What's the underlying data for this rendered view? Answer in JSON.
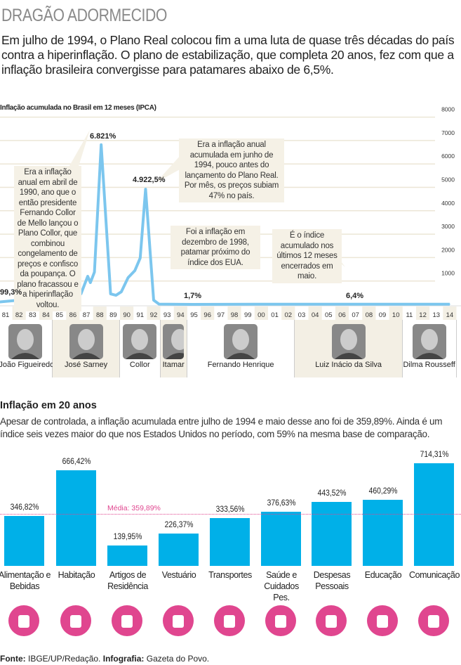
{
  "title": "DRAGÃO ADORMECIDO",
  "intro": "Em julho de 1994, o Plano Real colocou fim a uma luta de quase três décadas do país contra a hiperinflação. O plano de estabilização, que completa 20 anos, fez com que a inflação brasileira convergisse para patamares abaixo de 6,5%.",
  "chart_data": [
    {
      "type": "line",
      "title": "Inflação acumulada no Brasil em 12 meses (IPCA)",
      "ylim": [
        0,
        8000
      ],
      "yticks": [
        "1000",
        "2000",
        "3000",
        "4000",
        "5000",
        "6000",
        "7000",
        "8000"
      ],
      "xticks": [
        "81",
        "82",
        "83",
        "84",
        "85",
        "86",
        "87",
        "88",
        "89",
        "90",
        "91",
        "92",
        "93",
        "94",
        "95",
        "96",
        "97",
        "98",
        "99",
        "00",
        "01",
        "02",
        "03",
        "04",
        "05",
        "06",
        "07",
        "08",
        "09",
        "10",
        "11",
        "12",
        "13",
        "14"
      ],
      "grid": true,
      "color": "#7cc6ee",
      "x": [
        1981.0,
        1982.5,
        1983.7,
        1985.2,
        1986.0,
        1986.5,
        1987.1,
        1987.6,
        1987.8,
        1988.1,
        1988.6,
        1989.3,
        1989.7,
        1990.1,
        1990.6,
        1991.1,
        1991.5,
        1991.9,
        1992.5,
        1992.9,
        1995.4,
        2000,
        2005,
        2010,
        2014.5
      ],
      "y": [
        99.3,
        180,
        240,
        300,
        60,
        300,
        450,
        1200,
        930,
        1380,
        6821,
        450,
        390,
        540,
        1140,
        1440,
        1980,
        4922.5,
        180,
        10,
        1.7,
        8,
        8,
        8,
        6.4
      ],
      "data_labels": {
        "start": "99,3%",
        "peak1": "6.821%",
        "peak2": "4.922,5%",
        "low": "1,7%",
        "end": "6,4%"
      },
      "annotations": [
        "Era a inflação anual em abril de 1990, ano que o então presidente Fernando Collor de Mello lançou o Plano Collor, que combinou congelamento de preços e confisco da poupança. O plano fracassou e a hiperinflação voltou.",
        "Era a inflação anual acumulada em junho de 1994, pouco antes do lançamento do Plano Real. Por mês, os preços subiam 47% no país.",
        "Foi a inflação em dezembro de 1998, patamar próximo do índice dos EUA.",
        "É o índice acumulado nos últimos 12 meses encerrados em maio."
      ]
    },
    {
      "type": "bar",
      "title": "Inflação em 20 anos",
      "subtitle": "Apesar de controlada, a inflação acumulada entre julho de 1994 e maio desse ano foi de 359,89%. Ainda é um índice seis vezes maior do que nos Estados Unidos no período, com 59% na mesma base de comparação.",
      "categories": [
        "Alimentação e Bebidas",
        "Habitação",
        "Artigos de Residência",
        "Vestuário",
        "Transportes",
        "Saúde e Cuidados Pes.",
        "Despesas Pessoais",
        "Educação",
        "Comunicação"
      ],
      "values": [
        346.82,
        666.42,
        139.95,
        226.37,
        333.56,
        376.63,
        443.52,
        460.29,
        714.31
      ],
      "labels": [
        "346,82%",
        "666,42%",
        "139,95%",
        "226,37%",
        "333,56%",
        "376,63%",
        "443,52%",
        "460,29%",
        "714,31%"
      ],
      "mean": 359.89,
      "mean_label": "Média: 359,89%",
      "color": "#00b0e8",
      "mean_color": "#e0468f",
      "icons": [
        "bottles-icon",
        "house-icon",
        "chair-icon",
        "tshirt-icon",
        "car-icon",
        "perfume-icon",
        "person-icon",
        "pencil-icon",
        "phone-icon"
      ]
    }
  ],
  "presidents": [
    {
      "name": "João Figueiredo",
      "from": "81",
      "to": "84"
    },
    {
      "name": "José Sarney",
      "from": "85",
      "to": "89"
    },
    {
      "name": "Collor",
      "from": "90",
      "to": "92"
    },
    {
      "name": "Itamar",
      "from": "93",
      "to": "94"
    },
    {
      "name": "Fernando Henrique",
      "from": "95",
      "to": "02"
    },
    {
      "name": "Luiz Inácio da Silva",
      "from": "03",
      "to": "10"
    },
    {
      "name": "Dilma Rousseff",
      "from": "11",
      "to": "14"
    }
  ],
  "footer": {
    "source_label": "Fonte:",
    "source": "IBGE/UP/Redação.",
    "infographic_label": "Infografia:",
    "infographic": "Gazeta do Povo."
  }
}
